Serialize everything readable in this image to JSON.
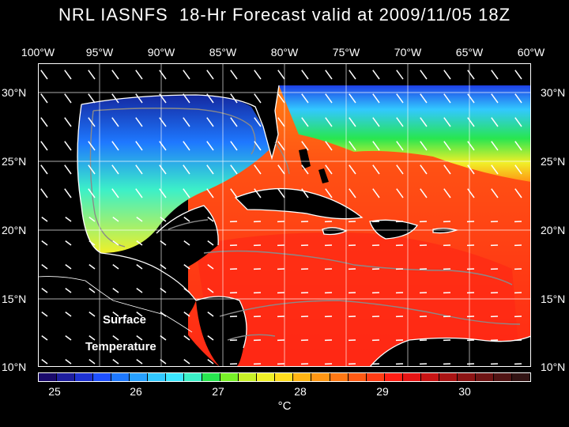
{
  "title": "NRL IASNFS  18-Hr Forecast valid at 2009/11/05 18Z",
  "longitude_labels": [
    "100°W",
    "95°W",
    "90°W",
    "85°W",
    "80°W",
    "75°W",
    "70°W",
    "65°W",
    "60°W"
  ],
  "latitude_labels": [
    "30°N",
    "25°N",
    "20°N",
    "15°N",
    "10°N"
  ],
  "overlay": {
    "line1": "Surface",
    "line2": "Temperature"
  },
  "colorbar": {
    "ticks": [
      "25",
      "26",
      "27",
      "28",
      "29",
      "30"
    ],
    "unit": "°C",
    "colors": [
      "#1a0a6b",
      "#1e1e9e",
      "#1e32d2",
      "#1e50ff",
      "#1e78ff",
      "#28a0ff",
      "#32c8ff",
      "#3ce6ff",
      "#3cf0c8",
      "#28e650",
      "#78f028",
      "#c8f028",
      "#f0f028",
      "#ffdc1e",
      "#ffb414",
      "#ff9614",
      "#ff7814",
      "#ff5a14",
      "#ff3c14",
      "#ff1e14",
      "#e61414",
      "#c81414",
      "#aa1414",
      "#8c1414",
      "#6e1414",
      "#501414",
      "#321414"
    ]
  },
  "map": {
    "lon_range": [
      -100,
      -60
    ],
    "lat_range": [
      10,
      31
    ],
    "land_color": "#000000",
    "coast_color": "#ffffff",
    "grid_color": "#ffffff",
    "isobath_color": "#888888"
  }
}
